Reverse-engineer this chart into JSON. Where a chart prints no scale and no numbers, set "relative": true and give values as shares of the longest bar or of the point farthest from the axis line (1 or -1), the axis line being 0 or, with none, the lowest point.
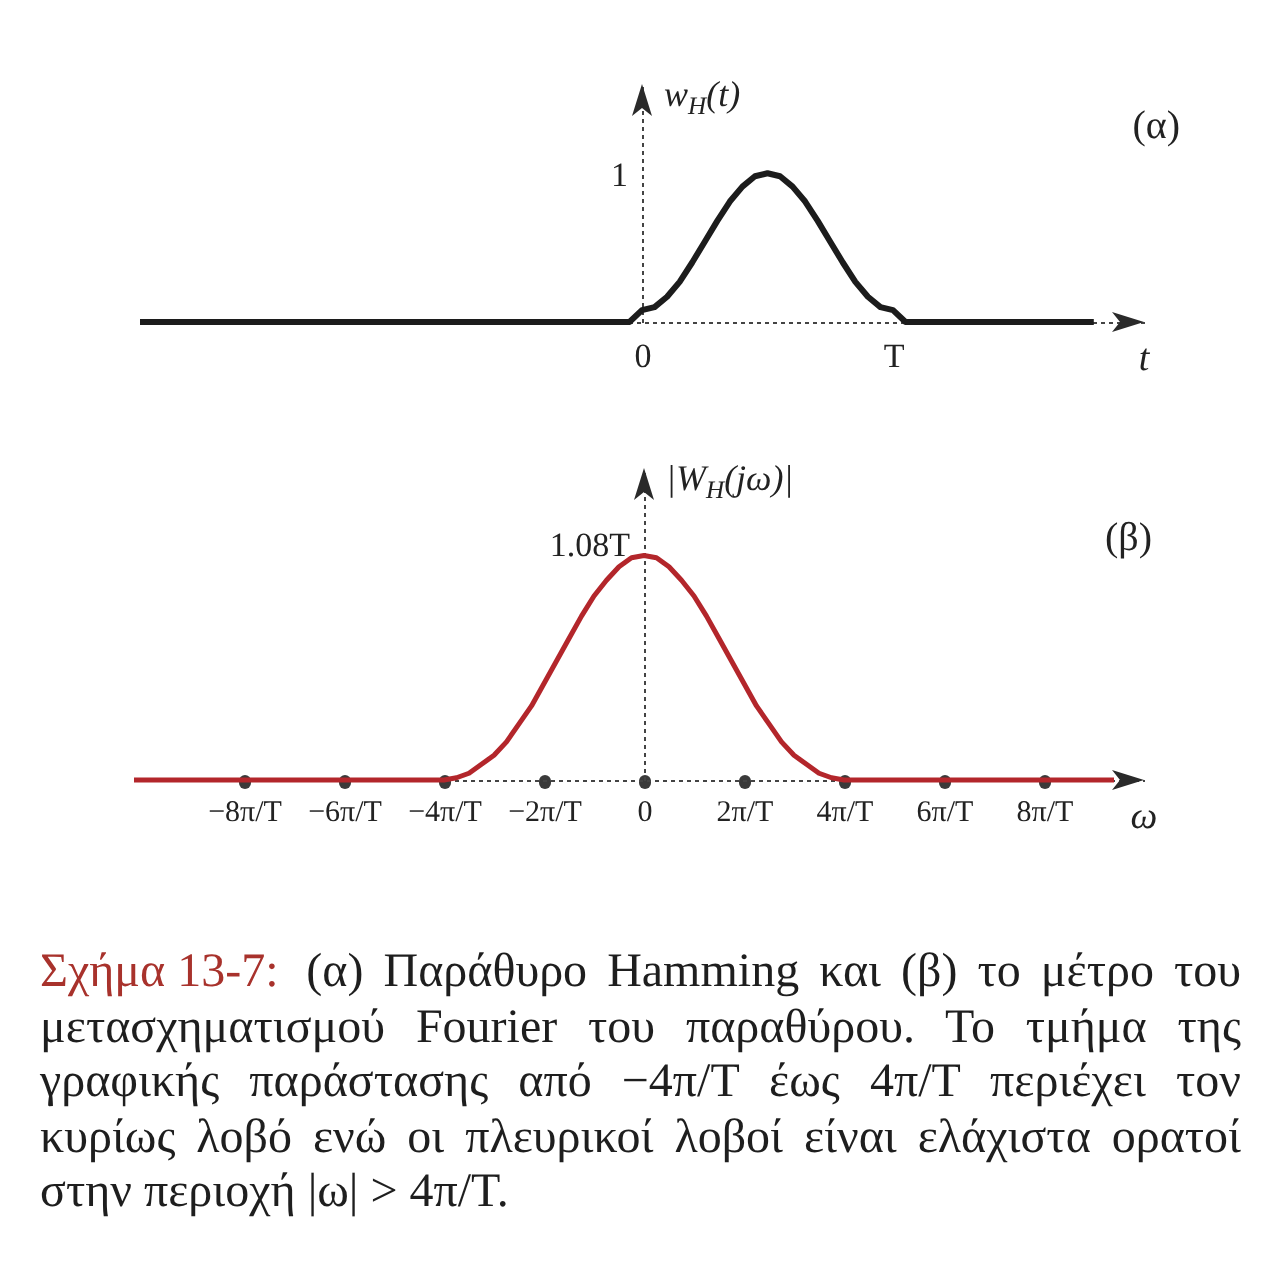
{
  "chart_data": [
    {
      "type": "line",
      "title": "(α)",
      "xlabel": "t",
      "ylabel": "w$_{H}$(t)",
      "relative": true,
      "categories": [
        null,
        null,
        null,
        null,
        null,
        null,
        null,
        null,
        null,
        null,
        null,
        null,
        null,
        null,
        null,
        null,
        null,
        null,
        null,
        null,
        null,
        null,
        null,
        null,
        null,
        null,
        null,
        null,
        null,
        null,
        null,
        null,
        null,
        null,
        null,
        null,
        null,
        null,
        null,
        null,
        "0",
        null,
        null,
        null,
        null,
        null,
        null,
        null,
        null,
        null,
        null,
        null,
        null,
        null,
        null,
        null,
        null,
        null,
        null,
        null,
        "T",
        null,
        null,
        null,
        null,
        null,
        null,
        null,
        null,
        null,
        null,
        null,
        null,
        null,
        null,
        null,
        null,
        null,
        null,
        null,
        null
      ],
      "series": [
        {
          "color": "#1c1c1c",
          "values": [
            0,
            0,
            0,
            0,
            0,
            0,
            0,
            0,
            0,
            0,
            0,
            0,
            0,
            0,
            0,
            0,
            0,
            0,
            0,
            0,
            0,
            0,
            0,
            0,
            0,
            0,
            0,
            0,
            0,
            0,
            0,
            0,
            0,
            0,
            0,
            0,
            0,
            0,
            0,
            0,
            0.08,
            0.1,
            0.17,
            0.27,
            0.4,
            0.54,
            0.68,
            0.81,
            0.91,
            0.98,
            1,
            0.98,
            0.91,
            0.81,
            0.68,
            0.54,
            0.4,
            0.27,
            0.17,
            0.1,
            0.08,
            0,
            0,
            0,
            0,
            0,
            0,
            0,
            0,
            0,
            0,
            0,
            0,
            0,
            0,
            0,
            0,
            null,
            null,
            null,
            null
          ]
        }
      ],
      "annotations": [
        "1"
      ]
    },
    {
      "type": "line",
      "title": "(β)",
      "xlabel": "ω",
      "ylabel": "|W$_{H}$(jω)|",
      "relative": true,
      "x": [
        -10.2,
        -8,
        -6,
        -4,
        -3.75,
        -3.5,
        -3.25,
        -3,
        -2.75,
        -2.5,
        -2.25,
        -2,
        -1.75,
        -1.5,
        -1.25,
        -1,
        -0.75,
        -0.5,
        -0.25,
        0,
        0.25,
        0.5,
        0.75,
        1,
        1.25,
        1.5,
        1.75,
        2,
        2.25,
        2.5,
        2.75,
        3,
        3.25,
        3.5,
        3.75,
        4,
        6,
        8,
        9.4
      ],
      "series": [
        {
          "color": "#b3262b",
          "values": [
            0,
            0,
            0,
            0,
            0.01,
            0.03,
            0.07,
            0.11,
            0.17,
            0.25,
            0.33,
            0.43,
            0.53,
            0.63,
            0.73,
            0.82,
            0.89,
            0.95,
            0.99,
            1,
            0.99,
            0.95,
            0.89,
            0.82,
            0.73,
            0.63,
            0.53,
            0.43,
            0.33,
            0.25,
            0.17,
            0.11,
            0.07,
            0.03,
            0.01,
            0,
            0,
            0,
            0
          ]
        }
      ],
      "xlim": [
        -10.2,
        10
      ],
      "xticks": [
        {
          "value": -8,
          "label": "−8π/T"
        },
        {
          "value": -6,
          "label": "−6π/T"
        },
        {
          "value": -4,
          "label": "−4π/T"
        },
        {
          "value": -2,
          "label": "−2π/T"
        },
        0,
        {
          "value": 2,
          "label": "2π/T"
        },
        {
          "value": 4,
          "label": "4π/T"
        },
        {
          "value": 6,
          "label": "6π/T"
        },
        {
          "value": 8,
          "label": "8π/T"
        }
      ],
      "annotations": [
        {
          "text": "1.08T",
          "x": 0,
          "y": 1
        },
        "Σχήμα 13-7: (α) Παράθυρο Hamming και (β) το μέτρο του μετασχηματισμού Fourier του παραθύρου. Το τμήμα της γραφικής παράστασης από −4π/T έως 4π/T περιέχει τον κυρίως λοβό ενώ οι πλευρικοί λοβοί είναι ελάχιστα ορατοί στην περιοχή |ω| > 4π/T."
      ]
    }
  ]
}
